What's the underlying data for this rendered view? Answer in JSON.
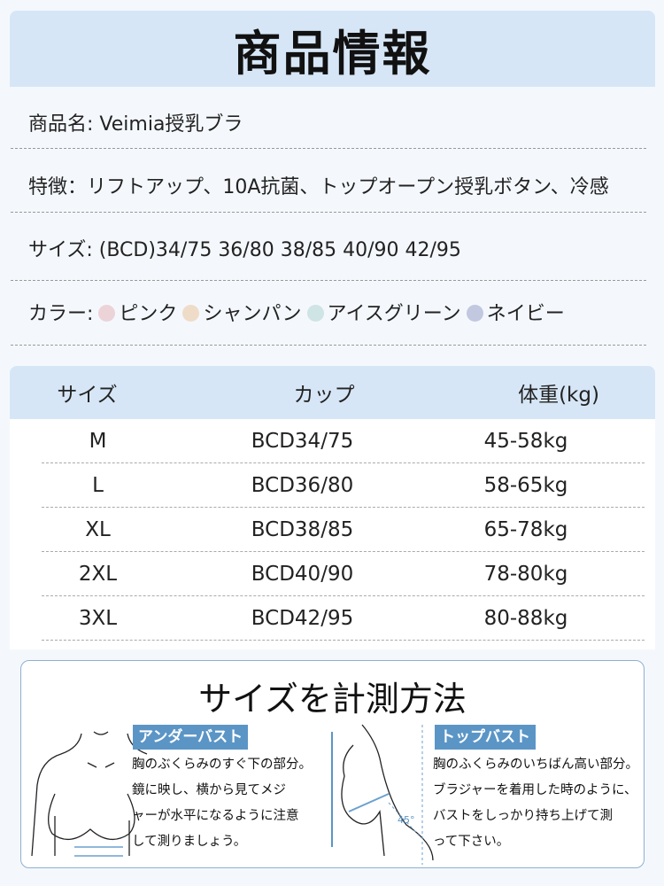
{
  "title": "商品情報",
  "info": {
    "name": "商品名: Veimia授乳ブラ",
    "features": "特徴：リフトアップ、10A抗菌、トップオープン授乳ボタン、冷感",
    "sizes": "サイズ: (BCD)34/75 36/80 38/85 40/90 42/95",
    "color_label": "カラー:",
    "colors": [
      {
        "name": "ピンク",
        "hex": "#ecd3d8"
      },
      {
        "name": "シャンパン",
        "hex": "#efdcc8"
      },
      {
        "name": "アイスグリーン",
        "hex": "#cfe4e4"
      },
      {
        "name": "ネイビー",
        "hex": "#c1c8e0"
      }
    ]
  },
  "table": {
    "headers": [
      "サイズ",
      "カップ",
      "体重(kg)"
    ],
    "rows": [
      [
        "M",
        "BCD34/75",
        "45-58kg"
      ],
      [
        "L",
        "BCD36/80",
        "58-65kg"
      ],
      [
        "XL",
        "BCD38/85",
        "65-78kg"
      ],
      [
        "2XL",
        "BCD40/90",
        "78-80kg"
      ],
      [
        "3XL",
        "BCD42/95",
        "80-88kg"
      ]
    ]
  },
  "measure": {
    "title": "サイズを計測方法",
    "under": {
      "label": "アンダーバスト",
      "lines": [
        "胸のぶくらみのすぐ下の部分。",
        "鏡に映し、横から見てメジ",
        "ャーが水平になるように注意",
        "して測りましょう。"
      ]
    },
    "top": {
      "label": "トップバスト",
      "lines": [
        "胸のふくらみのいちばん高い部分。",
        "ブラジャーを着用した時のように、",
        "バストをしっかり持ち上げて測",
        "って下さい。"
      ]
    },
    "angle": "45°"
  }
}
